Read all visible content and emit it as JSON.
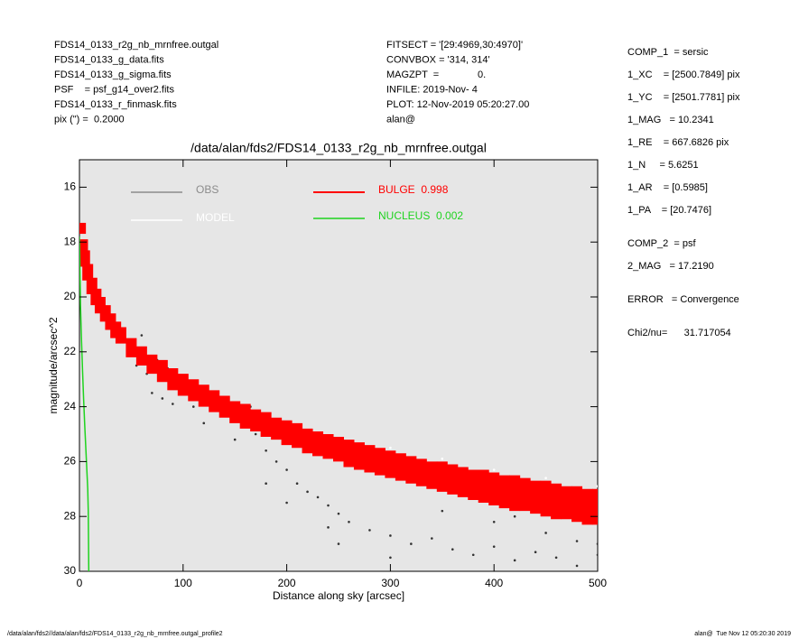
{
  "header_left": [
    "FDS14_0133_r2g_nb_mrnfree.outgal",
    "FDS14_0133_g_data.fits",
    "FDS14_0133_g_sigma.fits",
    "PSF    = psf_g14_over2.fits",
    "FDS14_0133_r_finmask.fits",
    "pix (\") =  0.2000"
  ],
  "header_middle": [
    "FITSECT = '[29:4969,30:4970]'",
    "CONVBOX = '314, 314'",
    "MAGZPT  =              0.",
    "INFILE: 2019-Nov- 4",
    "PLOT: 12-Nov-2019 05:20:27.00",
    "alan@"
  ],
  "header_right": [
    [
      "COMP_1  = sersic",
      "1_XC    = [2500.7849] pix",
      "1_YC    = [2501.7781] pix",
      "1_MAG   = 10.2341",
      "1_RE    = 667.6826 pix",
      "1_N     = 5.6251",
      "1_AR    = [0.5985]",
      "1_PA    = [20.7476]"
    ],
    [
      "COMP_2  = psf",
      "2_MAG   = 17.2190"
    ],
    [
      "ERROR   = Convergence"
    ],
    [
      "Chi2/nu=      31.717054"
    ]
  ],
  "footer_left": "/data/alan/fds2//data/alan/fds2/FDS14_0133_r2g_nb_mrnfree.outgal_profile2",
  "footer_right": "alan@  Tue Nov 12 05:20:30 2019",
  "chart_data": {
    "type": "scatter",
    "title": "/data/alan/fds2/FDS14_0133_r2g_nb_mrnfree.outgal",
    "xlabel": "Distance along sky [arcsec]",
    "ylabel": "magnitude/arcsec^2",
    "xlim": [
      0,
      500
    ],
    "xticks": [
      0,
      100,
      200,
      300,
      400,
      500
    ],
    "ylim": [
      30,
      15
    ],
    "yticks": [
      16,
      18,
      20,
      22,
      24,
      26,
      28,
      30
    ],
    "series": [
      {
        "name": "OBS",
        "color": "#8c8c8c",
        "mark": "dot",
        "x": [
          45,
          50,
          55,
          60,
          65,
          70,
          75,
          80,
          85,
          90,
          95,
          100,
          105,
          110,
          115,
          120,
          130,
          140,
          150,
          160,
          165,
          170,
          180,
          190,
          200,
          210,
          220,
          230,
          240,
          250,
          260,
          280,
          300,
          320,
          340,
          360,
          380,
          400,
          420,
          440,
          460,
          480,
          500,
          150,
          200,
          250,
          300,
          350,
          400,
          450,
          500,
          120,
          180,
          240,
          300,
          360,
          420,
          480
        ],
        "values": [
          21.6,
          21.8,
          22.5,
          21.4,
          22.8,
          23.5,
          22.3,
          23.7,
          22.6,
          23.9,
          23.0,
          22.9,
          23.4,
          24.0,
          23.5,
          23.7,
          24.1,
          23.9,
          24.2,
          24.5,
          24.0,
          25.0,
          25.6,
          26.0,
          26.3,
          26.8,
          27.1,
          27.3,
          27.6,
          27.9,
          28.2,
          28.5,
          28.7,
          29.0,
          28.8,
          29.2,
          29.4,
          29.1,
          29.6,
          29.3,
          29.5,
          29.8,
          29.4,
          25.2,
          27.5,
          29.0,
          26.5,
          27.8,
          28.2,
          28.6,
          29.0,
          24.6,
          26.8,
          28.4,
          29.5,
          26.9,
          28.0,
          28.9
        ]
      },
      {
        "name": "MODEL",
        "color": "#ffffff",
        "mark": "dot",
        "x": [
          300,
          350,
          400,
          450,
          500
        ],
        "values": [
          25.5,
          25.9,
          26.3,
          26.6,
          26.9
        ]
      },
      {
        "name": "BULGE  0.998",
        "color": "#ff0000",
        "mark": "band",
        "x": [
          1,
          3,
          5,
          8,
          12,
          16,
          20,
          25,
          30,
          35,
          40,
          50,
          60,
          70,
          80,
          90,
          100,
          110,
          120,
          130,
          140,
          150,
          160,
          170,
          180,
          190,
          200,
          210,
          220,
          230,
          240,
          250,
          260,
          270,
          280,
          290,
          300,
          310,
          320,
          330,
          340,
          350,
          360,
          370,
          380,
          390,
          400,
          410,
          420,
          430,
          440,
          450,
          460,
          470,
          480,
          490,
          500
        ],
        "values": [
          17.3,
          17.9,
          18.3,
          18.8,
          19.3,
          19.7,
          20.0,
          20.3,
          20.6,
          20.9,
          21.1,
          21.5,
          21.8,
          22.1,
          22.3,
          22.6,
          22.8,
          23.0,
          23.2,
          23.4,
          23.6,
          23.8,
          23.9,
          24.1,
          24.2,
          24.4,
          24.5,
          24.6,
          24.8,
          24.9,
          25.0,
          25.1,
          25.2,
          25.3,
          25.4,
          25.5,
          25.6,
          25.7,
          25.8,
          25.9,
          26.0,
          26.0,
          26.1,
          26.2,
          26.3,
          26.3,
          26.4,
          26.5,
          26.5,
          26.6,
          26.7,
          26.7,
          26.8,
          26.9,
          26.9,
          27.0,
          27.0
        ],
        "values_faint": [
          17.7,
          18.4,
          18.9,
          19.4,
          19.9,
          20.3,
          20.6,
          20.9,
          21.2,
          21.5,
          21.7,
          22.2,
          22.5,
          22.8,
          23.1,
          23.4,
          23.6,
          23.8,
          24.0,
          24.2,
          24.4,
          24.6,
          24.8,
          24.9,
          25.1,
          25.2,
          25.4,
          25.5,
          25.7,
          25.8,
          25.9,
          26.0,
          26.2,
          26.3,
          26.4,
          26.5,
          26.6,
          26.7,
          26.8,
          26.9,
          27.0,
          27.1,
          27.2,
          27.3,
          27.4,
          27.5,
          27.6,
          27.7,
          27.8,
          27.8,
          27.9,
          28.0,
          28.1,
          28.1,
          28.2,
          28.3,
          28.3
        ]
      },
      {
        "name": "NUCLEUS  0.002",
        "color": "#1fd31f",
        "mark": "line",
        "x": [
          0,
          0.5,
          1,
          2,
          3,
          4,
          5,
          6,
          7,
          8,
          8.5,
          9
        ],
        "values": [
          17.8,
          19,
          20.3,
          21.6,
          22.7,
          23.7,
          24.6,
          25.4,
          26.2,
          27,
          27.8,
          30
        ]
      }
    ]
  }
}
